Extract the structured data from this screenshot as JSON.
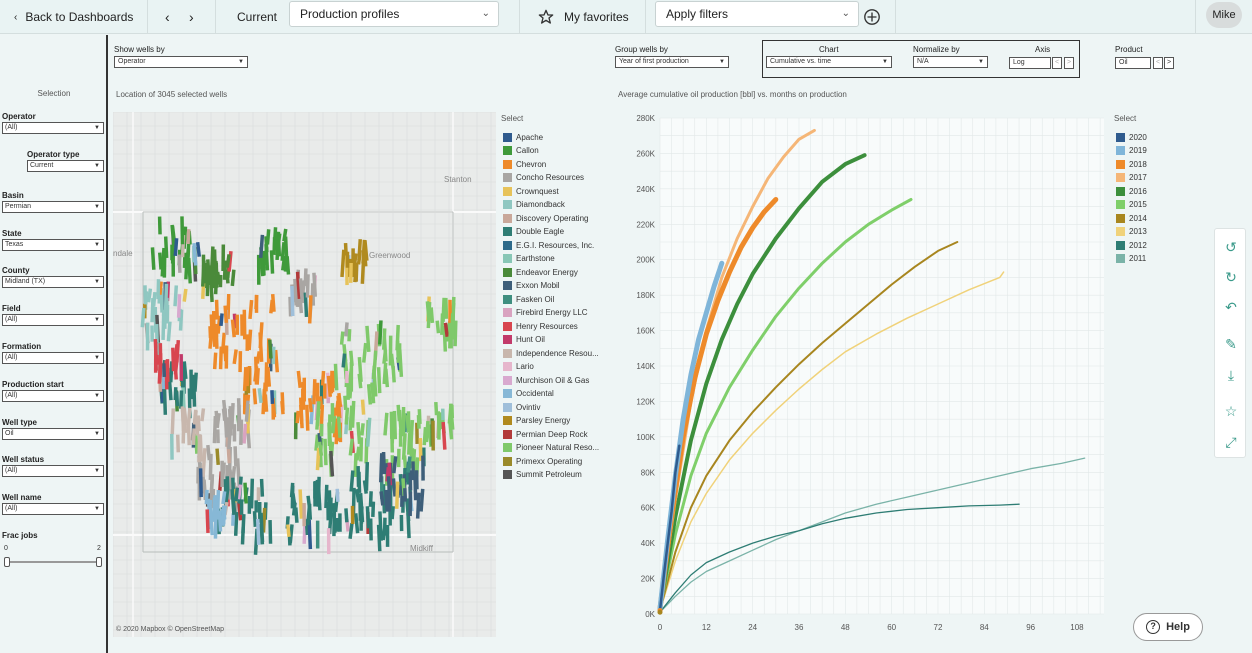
{
  "topbar": {
    "back_label": "Back to Dashboards",
    "current_label": "Current",
    "current_view": "Production profiles",
    "favorites_label": "My favorites",
    "filters_placeholder": "Apply filters",
    "user": "Mike"
  },
  "left": {
    "section_title": "Selection",
    "filters": [
      {
        "label": "Operator",
        "value": "(All)"
      },
      {
        "label": "Operator type",
        "value": "Current"
      },
      {
        "label": "Basin",
        "value": "Permian"
      },
      {
        "label": "State",
        "value": "Texas"
      },
      {
        "label": "County",
        "value": "Midland (TX)"
      },
      {
        "label": "Field",
        "value": "(All)"
      },
      {
        "label": "Formation",
        "value": "(All)"
      },
      {
        "label": "Production start",
        "value": "(All)"
      },
      {
        "label": "Well type",
        "value": "Oil"
      },
      {
        "label": "Well status",
        "value": "(All)"
      },
      {
        "label": "Well name",
        "value": "(All)"
      }
    ],
    "frac_jobs": {
      "label": "Frac jobs",
      "min": "0",
      "max": "2"
    }
  },
  "controls": {
    "show_wells_label": "Show wells by",
    "show_wells_value": "Operator",
    "group_wells_label": "Group wells by",
    "group_wells_value": "Year of first production",
    "chart_label": "Chart",
    "chart_value": "Cumulative vs. time",
    "normalize_label": "Normalize by",
    "normalize_value": "N/A",
    "axis_label": "Axis",
    "axis_value": "Log",
    "product_label": "Product",
    "product_value": "Oil"
  },
  "map": {
    "title": "Location of 3045 selected wells",
    "attribution": "© 2020 Mapbox  © OpenStreetMap",
    "place_labels": [
      "Stanton",
      "Greenwood",
      "Midkiff",
      "ndale"
    ]
  },
  "operator_legend": {
    "title": "Select",
    "items": [
      {
        "name": "Apache",
        "color": "#2f5b8e"
      },
      {
        "name": "Callon",
        "color": "#3f9a3a"
      },
      {
        "name": "Chevron",
        "color": "#ee8a2a"
      },
      {
        "name": "Concho Resources",
        "color": "#a9a6a3"
      },
      {
        "name": "Crownquest",
        "color": "#e7c35a"
      },
      {
        "name": "Diamondback",
        "color": "#8fc7c1"
      },
      {
        "name": "Discovery Operating",
        "color": "#c9a89a"
      },
      {
        "name": "Double Eagle",
        "color": "#2e7d74"
      },
      {
        "name": "E.G.I. Resources, Inc.",
        "color": "#2d6a8a"
      },
      {
        "name": "Earthstone",
        "color": "#88c7b6"
      },
      {
        "name": "Endeavor Energy",
        "color": "#4a8a3a"
      },
      {
        "name": "Exxon Mobil",
        "color": "#3e5f7a"
      },
      {
        "name": "Fasken Oil",
        "color": "#3f8f80"
      },
      {
        "name": "Firebird Energy LLC",
        "color": "#d9a3c0"
      },
      {
        "name": "Henry Resources",
        "color": "#d8464f"
      },
      {
        "name": "Hunt Oil",
        "color": "#c23a6a"
      },
      {
        "name": "Independence Resou...",
        "color": "#c8b7ad"
      },
      {
        "name": "Lario",
        "color": "#e6b6cc"
      },
      {
        "name": "Murchison Oil & Gas",
        "color": "#d8a9cf"
      },
      {
        "name": "Occidental",
        "color": "#87b8d6"
      },
      {
        "name": "Ovintiv",
        "color": "#9fbfda"
      },
      {
        "name": "Parsley Energy",
        "color": "#b08a1f"
      },
      {
        "name": "Permian Deep Rock",
        "color": "#b23a3a"
      },
      {
        "name": "Pioneer Natural Reso...",
        "color": "#7fc96a"
      },
      {
        "name": "Primexx Operating",
        "color": "#9a8a2a"
      },
      {
        "name": "Summit Petroleum",
        "color": "#555555"
      }
    ]
  },
  "year_legend": {
    "title": "Select",
    "items": [
      {
        "name": "2020",
        "color": "#2f5b8e"
      },
      {
        "name": "2019",
        "color": "#7fb5d9"
      },
      {
        "name": "2018",
        "color": "#ee8a2a"
      },
      {
        "name": "2017",
        "color": "#f5b677"
      },
      {
        "name": "2016",
        "color": "#3c8f3c"
      },
      {
        "name": "2015",
        "color": "#7fcf6a"
      },
      {
        "name": "2014",
        "color": "#a8861f"
      },
      {
        "name": "2013",
        "color": "#f0d27a"
      },
      {
        "name": "2012",
        "color": "#2e7d74"
      },
      {
        "name": "2011",
        "color": "#7ab3a8"
      }
    ]
  },
  "chart_data": {
    "type": "line",
    "title": "Average cumulative oil production [bbl] vs. months on production",
    "xlabel": "",
    "ylabel": "",
    "x_ticks": [
      0,
      12,
      24,
      36,
      48,
      60,
      72,
      84,
      96,
      108
    ],
    "y_ticks": [
      "0K",
      "20K",
      "40K",
      "60K",
      "80K",
      "100K",
      "120K",
      "140K",
      "160K",
      "180K",
      "200K",
      "220K",
      "240K",
      "260K",
      "280K"
    ],
    "xlim": [
      0,
      115
    ],
    "ylim": [
      0,
      280000
    ],
    "grid": true,
    "series": [
      {
        "name": "2020",
        "color": "#2f5b8e",
        "width": 2.5,
        "points": [
          [
            0,
            2000
          ],
          [
            1,
            22000
          ],
          [
            2,
            40000
          ],
          [
            3,
            58000
          ],
          [
            4,
            80000
          ],
          [
            5,
            95000
          ]
        ]
      },
      {
        "name": "2019",
        "color": "#7fb5d9",
        "width": 5,
        "points": [
          [
            0,
            3000
          ],
          [
            2,
            42000
          ],
          [
            4,
            78000
          ],
          [
            6,
            110000
          ],
          [
            8,
            135000
          ],
          [
            10,
            155000
          ],
          [
            12,
            170000
          ],
          [
            14,
            185000
          ],
          [
            16,
            198000
          ]
        ]
      },
      {
        "name": "2018",
        "color": "#ee8a2a",
        "width": 5,
        "points": [
          [
            0,
            3000
          ],
          [
            3,
            55000
          ],
          [
            6,
            100000
          ],
          [
            9,
            133000
          ],
          [
            12,
            158000
          ],
          [
            15,
            177000
          ],
          [
            18,
            193000
          ],
          [
            21,
            207000
          ],
          [
            24,
            218000
          ],
          [
            27,
            227000
          ],
          [
            30,
            234000
          ]
        ]
      },
      {
        "name": "2017",
        "color": "#f5b677",
        "width": 3,
        "points": [
          [
            0,
            3000
          ],
          [
            4,
            65000
          ],
          [
            8,
            120000
          ],
          [
            12,
            160000
          ],
          [
            16,
            190000
          ],
          [
            20,
            212000
          ],
          [
            24,
            230000
          ],
          [
            28,
            246000
          ],
          [
            32,
            258000
          ],
          [
            36,
            268000
          ],
          [
            40,
            273000
          ]
        ]
      },
      {
        "name": "2016",
        "color": "#3c8f3c",
        "width": 4,
        "points": [
          [
            0,
            3000
          ],
          [
            4,
            55000
          ],
          [
            8,
            98000
          ],
          [
            12,
            130000
          ],
          [
            16,
            155000
          ],
          [
            20,
            175000
          ],
          [
            24,
            192000
          ],
          [
            30,
            212000
          ],
          [
            36,
            229000
          ],
          [
            42,
            244000
          ],
          [
            48,
            254000
          ],
          [
            53,
            259000
          ]
        ]
      },
      {
        "name": "2015",
        "color": "#7fcf6a",
        "width": 3,
        "points": [
          [
            0,
            3000
          ],
          [
            4,
            45000
          ],
          [
            8,
            78000
          ],
          [
            12,
            102000
          ],
          [
            18,
            128000
          ],
          [
            24,
            149000
          ],
          [
            30,
            168000
          ],
          [
            36,
            184000
          ],
          [
            42,
            198000
          ],
          [
            48,
            210000
          ],
          [
            54,
            220000
          ],
          [
            60,
            228000
          ],
          [
            65,
            234000
          ]
        ]
      },
      {
        "name": "2014",
        "color": "#a8861f",
        "width": 2,
        "points": [
          [
            0,
            2000
          ],
          [
            4,
            35000
          ],
          [
            8,
            60000
          ],
          [
            12,
            78000
          ],
          [
            18,
            98000
          ],
          [
            24,
            114000
          ],
          [
            30,
            128000
          ],
          [
            36,
            141000
          ],
          [
            42,
            153000
          ],
          [
            48,
            164000
          ],
          [
            54,
            175000
          ],
          [
            60,
            186000
          ],
          [
            66,
            196000
          ],
          [
            72,
            205000
          ],
          [
            77,
            210000
          ]
        ]
      },
      {
        "name": "2013",
        "color": "#f0d27a",
        "width": 1.5,
        "points": [
          [
            0,
            2000
          ],
          [
            4,
            30000
          ],
          [
            8,
            52000
          ],
          [
            12,
            68000
          ],
          [
            18,
            87000
          ],
          [
            24,
            102000
          ],
          [
            30,
            115000
          ],
          [
            36,
            127000
          ],
          [
            42,
            138000
          ],
          [
            48,
            148000
          ],
          [
            56,
            158000
          ],
          [
            64,
            167000
          ],
          [
            72,
            175000
          ],
          [
            80,
            183000
          ],
          [
            88,
            190000
          ],
          [
            89,
            193000
          ]
        ]
      },
      {
        "name": "2012",
        "color": "#2e7d74",
        "width": 1.3,
        "points": [
          [
            0,
            1000
          ],
          [
            4,
            12000
          ],
          [
            8,
            22000
          ],
          [
            12,
            29000
          ],
          [
            18,
            35000
          ],
          [
            24,
            40000
          ],
          [
            30,
            44000
          ],
          [
            36,
            47000
          ],
          [
            42,
            51000
          ],
          [
            48,
            54000
          ],
          [
            56,
            57000
          ],
          [
            64,
            59000
          ],
          [
            72,
            60000
          ],
          [
            80,
            61000
          ],
          [
            88,
            61500
          ],
          [
            93,
            62000
          ]
        ]
      },
      {
        "name": "2011",
        "color": "#7ab3a8",
        "width": 1.3,
        "points": [
          [
            0,
            1000
          ],
          [
            4,
            10000
          ],
          [
            8,
            18000
          ],
          [
            12,
            24000
          ],
          [
            18,
            30000
          ],
          [
            24,
            36000
          ],
          [
            30,
            42000
          ],
          [
            36,
            47000
          ],
          [
            42,
            52000
          ],
          [
            48,
            57000
          ],
          [
            56,
            62000
          ],
          [
            64,
            66000
          ],
          [
            72,
            70000
          ],
          [
            80,
            74000
          ],
          [
            88,
            78000
          ],
          [
            96,
            82000
          ],
          [
            104,
            85000
          ],
          [
            110,
            88000
          ]
        ]
      }
    ]
  },
  "tools": [
    "undo-icon",
    "redo-icon",
    "revert-icon",
    "edit-icon",
    "download-icon",
    "favorite-icon",
    "fullscreen-icon"
  ],
  "help_label": "Help"
}
